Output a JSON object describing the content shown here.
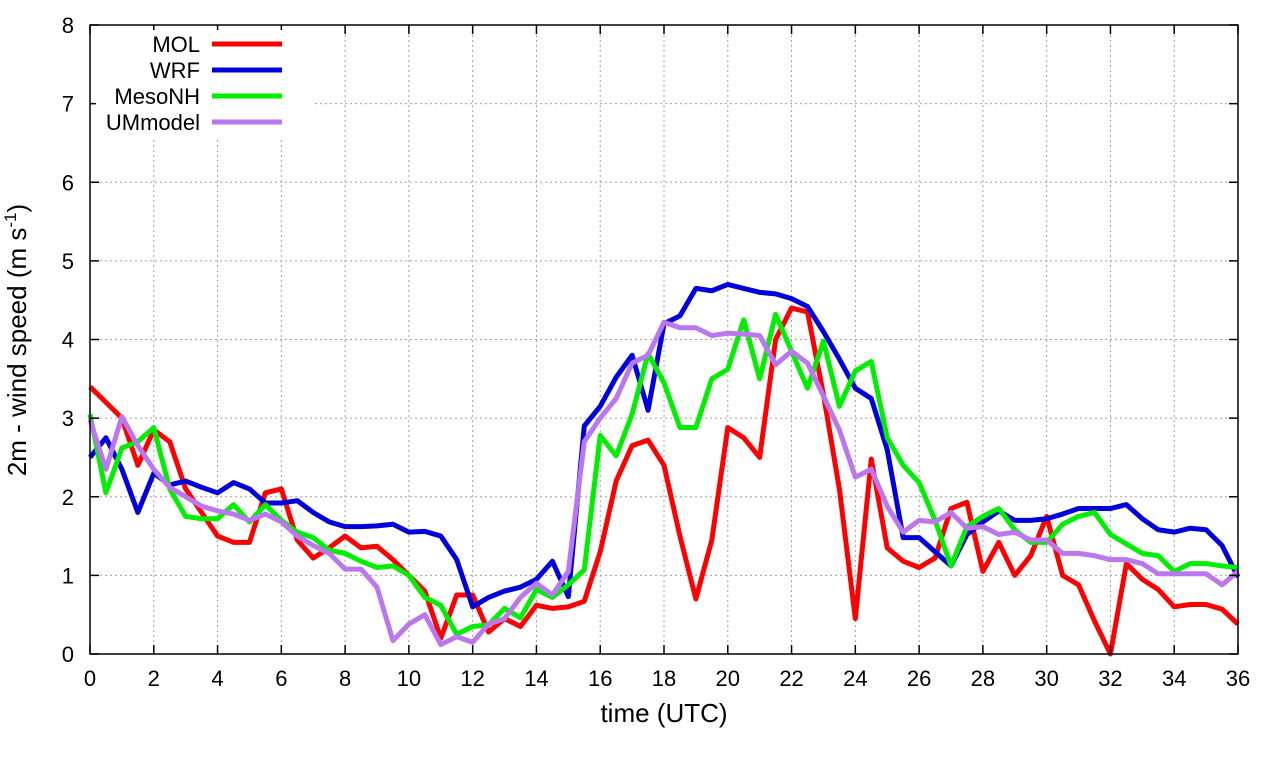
{
  "chart_data": {
    "type": "line",
    "title": "",
    "xlabel": "time (UTC)",
    "ylabel": {
      "main": "2m - wind speed  (m s",
      "sup": "-1",
      "close": ")"
    },
    "xlim": [
      0,
      36
    ],
    "ylim": [
      0,
      8
    ],
    "xticks": [
      0,
      2,
      4,
      6,
      8,
      10,
      12,
      14,
      16,
      18,
      20,
      22,
      24,
      26,
      28,
      30,
      32,
      34,
      36
    ],
    "yticks": [
      0,
      1,
      2,
      3,
      4,
      5,
      6,
      7,
      8
    ],
    "grid": true,
    "legend_position": "top-left",
    "series": [
      {
        "name": "MOL",
        "color": "#ff0000",
        "points": [
          [
            0,
            3.4
          ],
          [
            0.5,
            3.2
          ],
          [
            1,
            3.0
          ],
          [
            1.5,
            2.4
          ],
          [
            2,
            2.85
          ],
          [
            2.5,
            2.7
          ],
          [
            3,
            2.1
          ],
          [
            3.5,
            1.8
          ],
          [
            4,
            1.5
          ],
          [
            4.5,
            1.42
          ],
          [
            5,
            1.42
          ],
          [
            5.5,
            2.05
          ],
          [
            6,
            2.1
          ],
          [
            6.5,
            1.45
          ],
          [
            7,
            1.22
          ],
          [
            7.5,
            1.35
          ],
          [
            8,
            1.5
          ],
          [
            8.5,
            1.35
          ],
          [
            9,
            1.37
          ],
          [
            9.5,
            1.2
          ],
          [
            10,
            1.0
          ],
          [
            10.5,
            0.8
          ],
          [
            11,
            0.2
          ],
          [
            11.5,
            0.75
          ],
          [
            12,
            0.75
          ],
          [
            12.5,
            0.28
          ],
          [
            13,
            0.45
          ],
          [
            13.5,
            0.35
          ],
          [
            14,
            0.62
          ],
          [
            14.5,
            0.58
          ],
          [
            15,
            0.6
          ],
          [
            15.5,
            0.67
          ],
          [
            16,
            1.3
          ],
          [
            16.5,
            2.2
          ],
          [
            17,
            2.65
          ],
          [
            17.5,
            2.72
          ],
          [
            18,
            2.4
          ],
          [
            18.5,
            1.5
          ],
          [
            19,
            0.7
          ],
          [
            19.5,
            1.45
          ],
          [
            20,
            2.88
          ],
          [
            20.5,
            2.75
          ],
          [
            21,
            2.5
          ],
          [
            21.5,
            4.0
          ],
          [
            22,
            4.4
          ],
          [
            22.5,
            4.35
          ],
          [
            23,
            3.3
          ],
          [
            23.5,
            2.1
          ],
          [
            24,
            0.45
          ],
          [
            24.5,
            2.48
          ],
          [
            25,
            1.35
          ],
          [
            25.5,
            1.18
          ],
          [
            26,
            1.1
          ],
          [
            26.5,
            1.22
          ],
          [
            27,
            1.85
          ],
          [
            27.5,
            1.93
          ],
          [
            28,
            1.05
          ],
          [
            28.5,
            1.42
          ],
          [
            29,
            1.0
          ],
          [
            29.5,
            1.25
          ],
          [
            30,
            1.75
          ],
          [
            30.5,
            1.0
          ],
          [
            31,
            0.88
          ],
          [
            31.5,
            0.42
          ],
          [
            32,
            0.0
          ],
          [
            32.5,
            1.15
          ],
          [
            33,
            0.95
          ],
          [
            33.5,
            0.82
          ],
          [
            34,
            0.6
          ],
          [
            34.5,
            0.63
          ],
          [
            35,
            0.63
          ],
          [
            35.5,
            0.57
          ],
          [
            36,
            0.38
          ]
        ]
      },
      {
        "name": "WRF",
        "color": "#0000dd",
        "points": [
          [
            0,
            2.5
          ],
          [
            0.5,
            2.75
          ],
          [
            1,
            2.35
          ],
          [
            1.5,
            1.8
          ],
          [
            2,
            2.3
          ],
          [
            2.5,
            2.15
          ],
          [
            3,
            2.2
          ],
          [
            3.5,
            2.12
          ],
          [
            4,
            2.05
          ],
          [
            4.5,
            2.18
          ],
          [
            5,
            2.1
          ],
          [
            5.5,
            1.92
          ],
          [
            6,
            1.92
          ],
          [
            6.5,
            1.95
          ],
          [
            7,
            1.8
          ],
          [
            7.5,
            1.68
          ],
          [
            8,
            1.62
          ],
          [
            8.5,
            1.62
          ],
          [
            9,
            1.63
          ],
          [
            9.5,
            1.65
          ],
          [
            10,
            1.55
          ],
          [
            10.5,
            1.56
          ],
          [
            11,
            1.5
          ],
          [
            11.5,
            1.2
          ],
          [
            12,
            0.6
          ],
          [
            12.5,
            0.72
          ],
          [
            13,
            0.8
          ],
          [
            13.5,
            0.85
          ],
          [
            14,
            0.95
          ],
          [
            14.5,
            1.18
          ],
          [
            15,
            0.73
          ],
          [
            15.5,
            2.9
          ],
          [
            16,
            3.15
          ],
          [
            16.5,
            3.52
          ],
          [
            17,
            3.8
          ],
          [
            17.5,
            3.1
          ],
          [
            18,
            4.2
          ],
          [
            18.5,
            4.3
          ],
          [
            19,
            4.65
          ],
          [
            19.5,
            4.62
          ],
          [
            20,
            4.7
          ],
          [
            20.5,
            4.65
          ],
          [
            21,
            4.6
          ],
          [
            21.5,
            4.58
          ],
          [
            22,
            4.52
          ],
          [
            22.5,
            4.42
          ],
          [
            23,
            4.1
          ],
          [
            23.5,
            3.75
          ],
          [
            24,
            3.38
          ],
          [
            24.5,
            3.25
          ],
          [
            25,
            2.6
          ],
          [
            25.5,
            1.48
          ],
          [
            26,
            1.48
          ],
          [
            26.5,
            1.3
          ],
          [
            27,
            1.12
          ],
          [
            27.5,
            1.52
          ],
          [
            28,
            1.68
          ],
          [
            28.5,
            1.82
          ],
          [
            29,
            1.7
          ],
          [
            29.5,
            1.7
          ],
          [
            30,
            1.72
          ],
          [
            30.5,
            1.78
          ],
          [
            31,
            1.85
          ],
          [
            31.5,
            1.85
          ],
          [
            32,
            1.85
          ],
          [
            32.5,
            1.9
          ],
          [
            33,
            1.72
          ],
          [
            33.5,
            1.58
          ],
          [
            34,
            1.55
          ],
          [
            34.5,
            1.6
          ],
          [
            35,
            1.58
          ],
          [
            35.5,
            1.38
          ],
          [
            36,
            0.98
          ]
        ]
      },
      {
        "name": "MesoNH",
        "color": "#00ee00",
        "points": [
          [
            0,
            3.05
          ],
          [
            0.5,
            2.05
          ],
          [
            1,
            2.62
          ],
          [
            1.5,
            2.7
          ],
          [
            2,
            2.88
          ],
          [
            2.5,
            2.1
          ],
          [
            3,
            1.75
          ],
          [
            3.5,
            1.72
          ],
          [
            4,
            1.72
          ],
          [
            4.5,
            1.9
          ],
          [
            5,
            1.68
          ],
          [
            5.5,
            1.9
          ],
          [
            6,
            1.7
          ],
          [
            6.5,
            1.55
          ],
          [
            7,
            1.48
          ],
          [
            7.5,
            1.32
          ],
          [
            8,
            1.28
          ],
          [
            8.5,
            1.18
          ],
          [
            9,
            1.1
          ],
          [
            9.5,
            1.12
          ],
          [
            10,
            1.0
          ],
          [
            10.5,
            0.72
          ],
          [
            11,
            0.62
          ],
          [
            11.5,
            0.25
          ],
          [
            12,
            0.35
          ],
          [
            12.5,
            0.37
          ],
          [
            13,
            0.58
          ],
          [
            13.5,
            0.46
          ],
          [
            14,
            0.82
          ],
          [
            14.5,
            0.72
          ],
          [
            15,
            0.88
          ],
          [
            15.5,
            1.07
          ],
          [
            16,
            2.78
          ],
          [
            16.5,
            2.52
          ],
          [
            17,
            3.05
          ],
          [
            17.5,
            3.82
          ],
          [
            18,
            3.45
          ],
          [
            18.5,
            2.88
          ],
          [
            19,
            2.88
          ],
          [
            19.5,
            3.5
          ],
          [
            20,
            3.62
          ],
          [
            20.5,
            4.25
          ],
          [
            21,
            3.5
          ],
          [
            21.5,
            4.32
          ],
          [
            22,
            3.85
          ],
          [
            22.5,
            3.38
          ],
          [
            23,
            3.98
          ],
          [
            23.5,
            3.15
          ],
          [
            24,
            3.6
          ],
          [
            24.5,
            3.72
          ],
          [
            25,
            2.75
          ],
          [
            25.5,
            2.4
          ],
          [
            26,
            2.18
          ],
          [
            26.5,
            1.7
          ],
          [
            27,
            1.12
          ],
          [
            27.5,
            1.62
          ],
          [
            28,
            1.75
          ],
          [
            28.5,
            1.85
          ],
          [
            29,
            1.58
          ],
          [
            29.5,
            1.42
          ],
          [
            30,
            1.42
          ],
          [
            30.5,
            1.65
          ],
          [
            31,
            1.75
          ],
          [
            31.5,
            1.8
          ],
          [
            32,
            1.52
          ],
          [
            32.5,
            1.4
          ],
          [
            33,
            1.28
          ],
          [
            33.5,
            1.25
          ],
          [
            34,
            1.05
          ],
          [
            34.5,
            1.15
          ],
          [
            35,
            1.15
          ],
          [
            35.5,
            1.12
          ],
          [
            36,
            1.1
          ]
        ]
      },
      {
        "name": "UMmodel",
        "color": "#bb77ee",
        "points": [
          [
            0,
            2.98
          ],
          [
            0.5,
            2.35
          ],
          [
            1,
            3.02
          ],
          [
            1.5,
            2.65
          ],
          [
            2,
            2.35
          ],
          [
            2.5,
            2.12
          ],
          [
            3,
            2.0
          ],
          [
            3.5,
            1.88
          ],
          [
            4,
            1.82
          ],
          [
            4.5,
            1.78
          ],
          [
            5,
            1.7
          ],
          [
            5.5,
            1.78
          ],
          [
            6,
            1.68
          ],
          [
            6.5,
            1.5
          ],
          [
            7,
            1.38
          ],
          [
            7.5,
            1.28
          ],
          [
            8,
            1.08
          ],
          [
            8.5,
            1.08
          ],
          [
            9,
            0.85
          ],
          [
            9.5,
            0.17
          ],
          [
            10,
            0.38
          ],
          [
            10.5,
            0.5
          ],
          [
            11,
            0.12
          ],
          [
            11.5,
            0.22
          ],
          [
            12,
            0.15
          ],
          [
            12.5,
            0.38
          ],
          [
            13,
            0.45
          ],
          [
            13.5,
            0.72
          ],
          [
            14,
            0.9
          ],
          [
            14.5,
            0.75
          ],
          [
            15,
            1.05
          ],
          [
            15.5,
            2.7
          ],
          [
            16,
            3.0
          ],
          [
            16.5,
            3.25
          ],
          [
            17,
            3.7
          ],
          [
            17.5,
            3.8
          ],
          [
            18,
            4.22
          ],
          [
            18.5,
            4.15
          ],
          [
            19,
            4.15
          ],
          [
            19.5,
            4.05
          ],
          [
            20,
            4.08
          ],
          [
            20.5,
            4.07
          ],
          [
            21,
            4.05
          ],
          [
            21.5,
            3.68
          ],
          [
            22,
            3.85
          ],
          [
            22.5,
            3.7
          ],
          [
            23,
            3.28
          ],
          [
            23.5,
            2.85
          ],
          [
            24,
            2.25
          ],
          [
            24.5,
            2.35
          ],
          [
            25,
            1.88
          ],
          [
            25.5,
            1.55
          ],
          [
            26,
            1.7
          ],
          [
            26.5,
            1.68
          ],
          [
            27,
            1.8
          ],
          [
            27.5,
            1.6
          ],
          [
            28,
            1.62
          ],
          [
            28.5,
            1.52
          ],
          [
            29,
            1.55
          ],
          [
            29.5,
            1.45
          ],
          [
            30,
            1.45
          ],
          [
            30.5,
            1.28
          ],
          [
            31,
            1.28
          ],
          [
            31.5,
            1.25
          ],
          [
            32,
            1.2
          ],
          [
            32.5,
            1.2
          ],
          [
            33,
            1.15
          ],
          [
            33.5,
            1.02
          ],
          [
            34,
            1.02
          ],
          [
            34.5,
            1.02
          ],
          [
            35,
            1.02
          ],
          [
            35.5,
            0.88
          ],
          [
            36,
            1.05
          ]
        ]
      }
    ]
  }
}
